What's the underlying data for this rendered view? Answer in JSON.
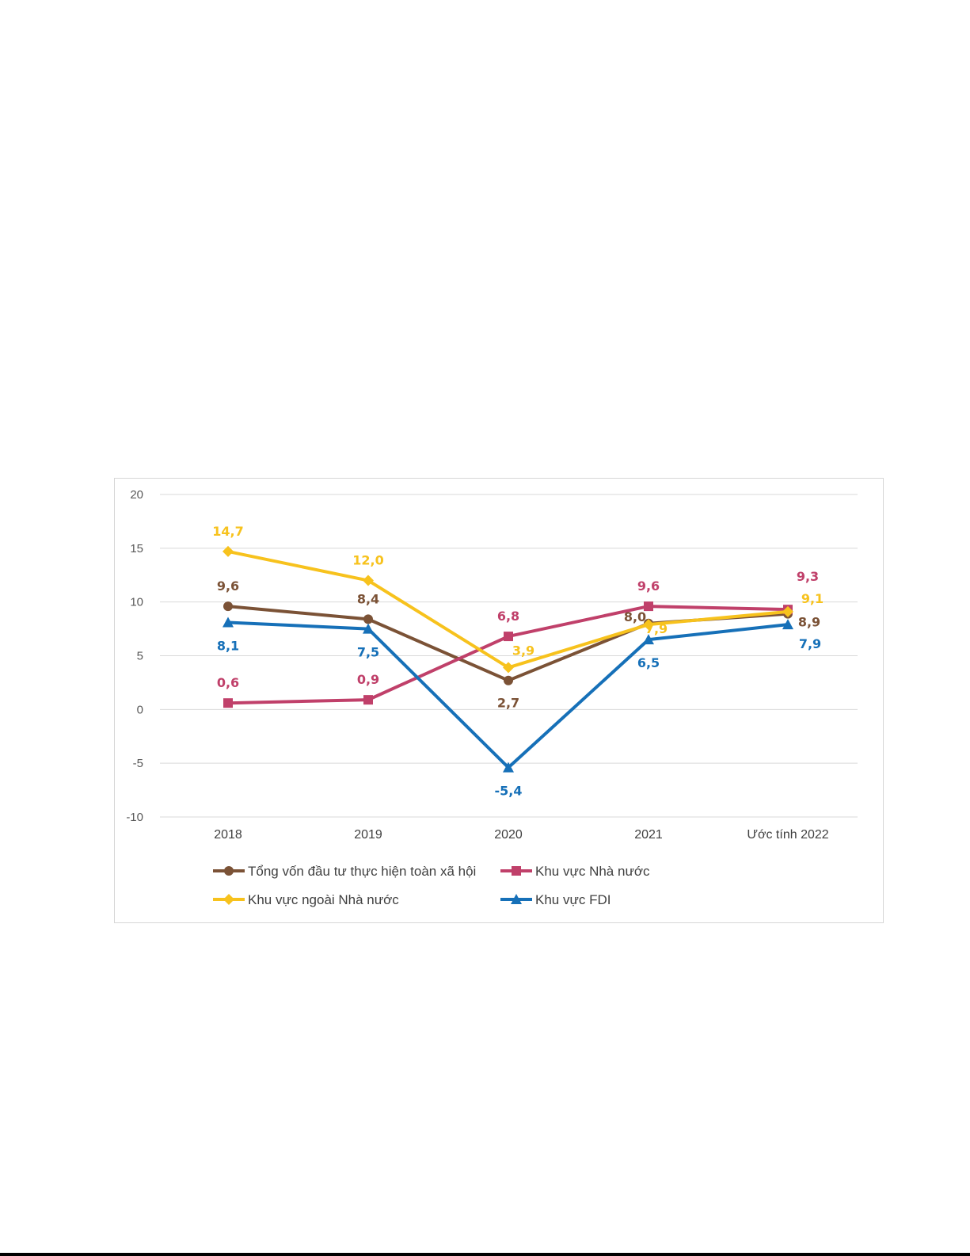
{
  "chart_data": {
    "type": "line",
    "categories": [
      "2018",
      "2019",
      "2020",
      "2021",
      "Ước tính 2022"
    ],
    "ylim": [
      -10,
      20
    ],
    "yticks": [
      20,
      15,
      10,
      5,
      0,
      -5,
      -10
    ],
    "grid": true,
    "legend_position": "bottom",
    "series": [
      {
        "name": "Tổng vốn đầu tư thực hiện toàn xã hội",
        "color": "#7b5236",
        "marker": "circle",
        "values": [
          9.6,
          8.4,
          2.7,
          8.0,
          8.9
        ],
        "labels": [
          "9,6",
          "8,4",
          "2,7",
          "8,0",
          "8,9"
        ]
      },
      {
        "name": "Khu vực Nhà nước",
        "color": "#c0406a",
        "marker": "square",
        "values": [
          0.6,
          0.9,
          6.8,
          9.6,
          9.3
        ],
        "labels": [
          "0,6",
          "0,9",
          "6,8",
          "9,6",
          "9,3"
        ]
      },
      {
        "name": "Khu vực ngoài Nhà nước",
        "color": "#f7c21d",
        "marker": "diamond",
        "values": [
          14.7,
          12.0,
          3.9,
          7.9,
          9.1
        ],
        "labels": [
          "14,7",
          "12,0",
          "3,9",
          "7,9",
          "9,1"
        ]
      },
      {
        "name": "Khu vực FDI",
        "color": "#1670b8",
        "marker": "triangle",
        "values": [
          8.1,
          7.5,
          -5.4,
          6.5,
          7.9
        ],
        "labels": [
          "8,1",
          "7,5",
          "-5,4",
          "6,5",
          "7,9"
        ]
      }
    ]
  }
}
